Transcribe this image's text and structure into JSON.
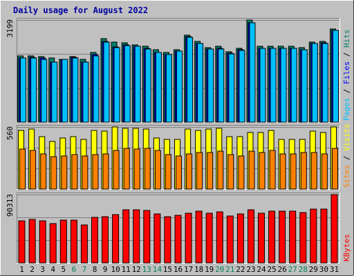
{
  "title": "Daily usage for August 2022",
  "colors": {
    "background": "#c0c0c0",
    "hits": "#00806b",
    "files": "#0000ff",
    "pages": "#00c0ff",
    "visits": "#ffff00",
    "sites": "#ff8000",
    "kbytes": "#ff0000",
    "title": "#0000a0",
    "weekend_label": "#00805c"
  },
  "chart_data": {
    "type": "bar",
    "categories": [
      "1",
      "2",
      "3",
      "4",
      "5",
      "6",
      "7",
      "8",
      "9",
      "10",
      "11",
      "12",
      "13",
      "14",
      "15",
      "16",
      "17",
      "18",
      "19",
      "20",
      "21",
      "22",
      "23",
      "24",
      "25",
      "26",
      "27",
      "28",
      "29",
      "30",
      "31"
    ],
    "weekend_days": [
      "6",
      "7",
      "13",
      "14",
      "20",
      "21",
      "27",
      "28"
    ],
    "panels": [
      {
        "id": "hits_files_pages",
        "max_label": "3199",
        "ymax": 3199,
        "side_label_parts": [
          {
            "text": "Pages",
            "color": "#00c0ff"
          },
          {
            "text": " / ",
            "color": "#000000"
          },
          {
            "text": "Files",
            "color": "#0000ff"
          },
          {
            "text": " / ",
            "color": "#000000"
          },
          {
            "text": "Hits",
            "color": "#00806b"
          }
        ],
        "series": [
          {
            "name": "Hits",
            "color": "#00806b",
            "values": [
              2070,
              2070,
              2050,
              2020,
              1960,
              2060,
              1960,
              2180,
              2610,
              2500,
              2480,
              2420,
              2370,
              2270,
              2190,
              2270,
              2730,
              2530,
              2340,
              2370,
              2210,
              2310,
              3199,
              2370,
              2370,
              2370,
              2370,
              2330,
              2510,
              2520,
              2920
            ]
          },
          {
            "name": "Files",
            "color": "#0000ff",
            "values": [
              2020,
              2040,
              2010,
              1890,
              1970,
              2040,
              1890,
              2110,
              2530,
              2350,
              2420,
              2380,
              2320,
              2190,
              2120,
              2220,
              2670,
              2460,
              2300,
              2310,
              2160,
              2260,
              3120,
              2320,
              2320,
              2320,
              2320,
              2270,
              2460,
              2480,
              2880
            ]
          },
          {
            "name": "Pages",
            "color": "#00c0ff",
            "values": [
              2000,
              2010,
              1970,
              1890,
              1960,
              2020,
              1880,
              2080,
              2510,
              2340,
              2410,
              2380,
              2300,
              2180,
              2120,
              2220,
              2660,
              2460,
              2290,
              2300,
              2150,
              2240,
              3120,
              2320,
              2310,
              2320,
              2320,
              2260,
              2460,
              2470,
              2870
            ]
          }
        ]
      },
      {
        "id": "visits_sites",
        "max_label": "560",
        "ymax": 560,
        "side_label_parts": [
          {
            "text": "Sites",
            "color": "#ff8000"
          },
          {
            "text": " / ",
            "color": "#000000"
          },
          {
            "text": "Visits",
            "color": "#ffff00"
          }
        ],
        "series": [
          {
            "name": "Visits",
            "color": "#ffff00",
            "values": [
              530,
              540,
              470,
              430,
              460,
              470,
              450,
              530,
              520,
              560,
              550,
              550,
              540,
              460,
              450,
              450,
              540,
              530,
              540,
              550,
              470,
              470,
              510,
              510,
              530,
              450,
              450,
              450,
              520,
              510,
              560
            ]
          },
          {
            "name": "Sites",
            "color": "#ff8000",
            "values": [
              360,
              350,
              320,
              290,
              300,
              310,
              300,
              310,
              320,
              350,
              370,
              360,
              370,
              350,
              310,
              300,
              320,
              330,
              330,
              340,
              310,
              300,
              340,
              330,
              350,
              320,
              320,
              330,
              330,
              320,
              370
            ]
          }
        ]
      },
      {
        "id": "kbytes",
        "max_label": "90313",
        "ymax": 90313,
        "side_label_parts": [
          {
            "text": "KBytes",
            "color": "#ff0000"
          }
        ],
        "series": [
          {
            "name": "KBytes",
            "color": "#ff0000",
            "values": [
              56000,
              57500,
              55500,
              52000,
              56500,
              57000,
              50000,
              60000,
              61000,
              63500,
              70000,
              70000,
              69000,
              65000,
              61000,
              63000,
              66000,
              68500,
              66000,
              67500,
              62000,
              65000,
              70000,
              66000,
              68500,
              68500,
              68000,
              67000,
              71500,
              71500,
              90313
            ]
          }
        ]
      }
    ]
  }
}
